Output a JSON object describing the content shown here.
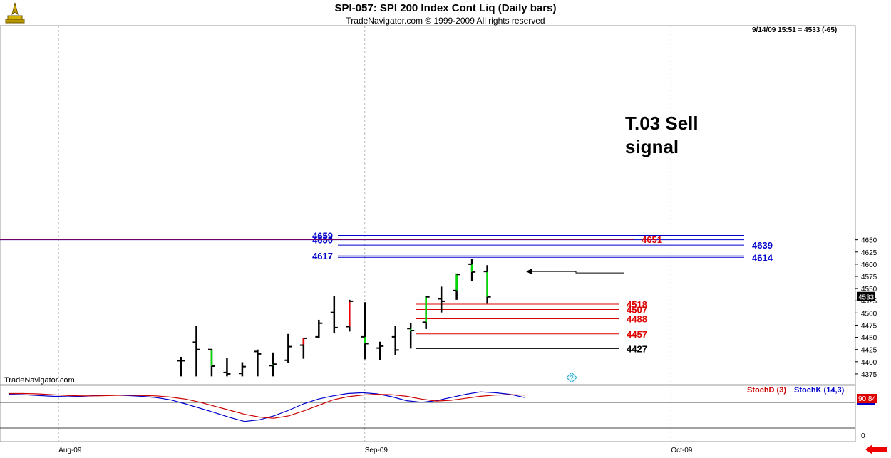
{
  "header": {
    "title": "SPI-057:  SPI 200 Index Cont Liq  (Daily bars)",
    "subtitle": "TradeNavigator.com © 1999-2009 All rights reserved",
    "quote": "9/14/09 15:51 = 4533 (-65)"
  },
  "watermark": "TradeNavigator.com",
  "annotation": {
    "line1": "T.03 Sell",
    "line2": "signal"
  },
  "indicators": {
    "stoch_d_label": "StochD (3)",
    "stoch_k_label": "StochK (14,3)",
    "value_badge": "90.84",
    "axis_zero": "0"
  },
  "colors": {
    "up_bar": "#00dd00",
    "down_bar": "#ee0000",
    "neutral_bar": "#000000",
    "resistance": "#0000cc",
    "support": "#dd0000",
    "stoch_d": "#cc0000",
    "stoch_k": "#0000cc",
    "grid": "#bbbbbb"
  },
  "icons": {
    "logo": "compass-logo-icon",
    "help": "help-diamond-icon",
    "nav": "red-left-arrow-icon"
  },
  "chart_data": {
    "type": "ohlc",
    "title": "SPI-057:  SPI 200 Index Cont Liq  (Daily bars)",
    "ylim": [
      4370,
      4665
    ],
    "y_ticks": [
      4375,
      4400,
      4425,
      4450,
      4475,
      4500,
      4525,
      4550,
      4575,
      4600,
      4625,
      4650
    ],
    "x_ticks": [
      {
        "label": "Aug-09",
        "bar_index": -8
      },
      {
        "label": "Sep-09",
        "bar_index": 12
      },
      {
        "label": "Oct-09",
        "bar_index": 32
      }
    ],
    "last_price": "4533",
    "bars": [
      {
        "o": 4402,
        "h": 4410,
        "l": 4370,
        "c": 4402,
        "color": "neutral"
      },
      {
        "o": 4440,
        "h": 4474,
        "l": 4370,
        "c": 4425,
        "color": "neutral"
      },
      {
        "o": 4425,
        "h": 4426,
        "l": 4370,
        "c": 4391,
        "color": "up"
      },
      {
        "o": 4378,
        "h": 4408,
        "l": 4370,
        "c": 4375,
        "color": "neutral"
      },
      {
        "o": 4376,
        "h": 4399,
        "l": 4370,
        "c": 4390,
        "color": "neutral"
      },
      {
        "o": 4421,
        "h": 4425,
        "l": 4370,
        "c": 4416,
        "color": "neutral"
      },
      {
        "o": 4392,
        "h": 4419,
        "l": 4370,
        "c": 4395,
        "color": "up"
      },
      {
        "o": 4403,
        "h": 4457,
        "l": 4397,
        "c": 4431,
        "color": "neutral"
      },
      {
        "o": 4434,
        "h": 4448,
        "l": 4406,
        "c": 4448,
        "color": "down"
      },
      {
        "o": 4451,
        "h": 4486,
        "l": 4449,
        "c": 4479,
        "color": "neutral"
      },
      {
        "o": 4501,
        "h": 4535,
        "l": 4458,
        "c": 4470,
        "color": "neutral"
      },
      {
        "o": 4472,
        "h": 4527,
        "l": 4462,
        "c": 4524,
        "color": "down"
      },
      {
        "o": 4451,
        "h": 4522,
        "l": 4405,
        "c": 4437,
        "color": "up"
      },
      {
        "o": 4428,
        "h": 4441,
        "l": 4404,
        "c": 4432,
        "color": "neutral"
      },
      {
        "o": 4451,
        "h": 4473,
        "l": 4414,
        "c": 4424,
        "color": "neutral"
      },
      {
        "o": 4468,
        "h": 4479,
        "l": 4427,
        "c": 4464,
        "color": "up"
      },
      {
        "o": 4481,
        "h": 4535,
        "l": 4467,
        "c": 4533,
        "color": "up"
      },
      {
        "o": 4529,
        "h": 4554,
        "l": 4501,
        "c": 4524,
        "color": "neutral"
      },
      {
        "o": 4546,
        "h": 4581,
        "l": 4527,
        "c": 4579,
        "color": "up"
      },
      {
        "o": 4600,
        "h": 4610,
        "l": 4565,
        "c": 4584,
        "color": "up"
      },
      {
        "o": 4585,
        "h": 4598,
        "l": 4519,
        "c": 4533,
        "color": "up"
      }
    ],
    "levels": [
      {
        "value": 4659,
        "label": "4659",
        "color": "resistance",
        "side": "left"
      },
      {
        "value": 4650,
        "label": "4650",
        "color": "resistance",
        "side": "left"
      },
      {
        "value": 4651,
        "label": "4651",
        "color": "support",
        "side": "right"
      },
      {
        "value": 4639,
        "label": "4639",
        "color": "resistance",
        "side": "right"
      },
      {
        "value": 4617,
        "label": "4617",
        "color": "resistance",
        "side": "left"
      },
      {
        "value": 4614,
        "label": "4614",
        "color": "resistance",
        "side": "right"
      },
      {
        "value": 4518,
        "label": "4518",
        "color": "support",
        "side": "right"
      },
      {
        "value": 4507,
        "label": "4507",
        "color": "support",
        "side": "right"
      },
      {
        "value": 4488,
        "label": "4488",
        "color": "support",
        "side": "right"
      },
      {
        "value": 4457,
        "label": "4457",
        "color": "support",
        "side": "right"
      },
      {
        "value": 4427,
        "label": "4427",
        "color": "neutral",
        "side": "right"
      }
    ],
    "annotation_price": 4585,
    "stochastic": {
      "ylim": [
        0,
        100
      ],
      "stoch_d": [
        92,
        92,
        91,
        89,
        87,
        86,
        86,
        87,
        88,
        87,
        86,
        83,
        78,
        70,
        60,
        50,
        40,
        33,
        30,
        36,
        48,
        62,
        76,
        84,
        88,
        90,
        89,
        85,
        78,
        73,
        75,
        80,
        85,
        88,
        89,
        88
      ],
      "stoch_k": [
        90,
        89,
        87,
        85,
        84,
        85,
        87,
        88,
        87,
        85,
        82,
        76,
        66,
        55,
        44,
        32,
        22,
        26,
        36,
        50,
        66,
        78,
        86,
        92,
        94,
        91,
        84,
        74,
        70,
        74,
        82,
        90,
        96,
        94,
        90,
        82
      ]
    }
  }
}
